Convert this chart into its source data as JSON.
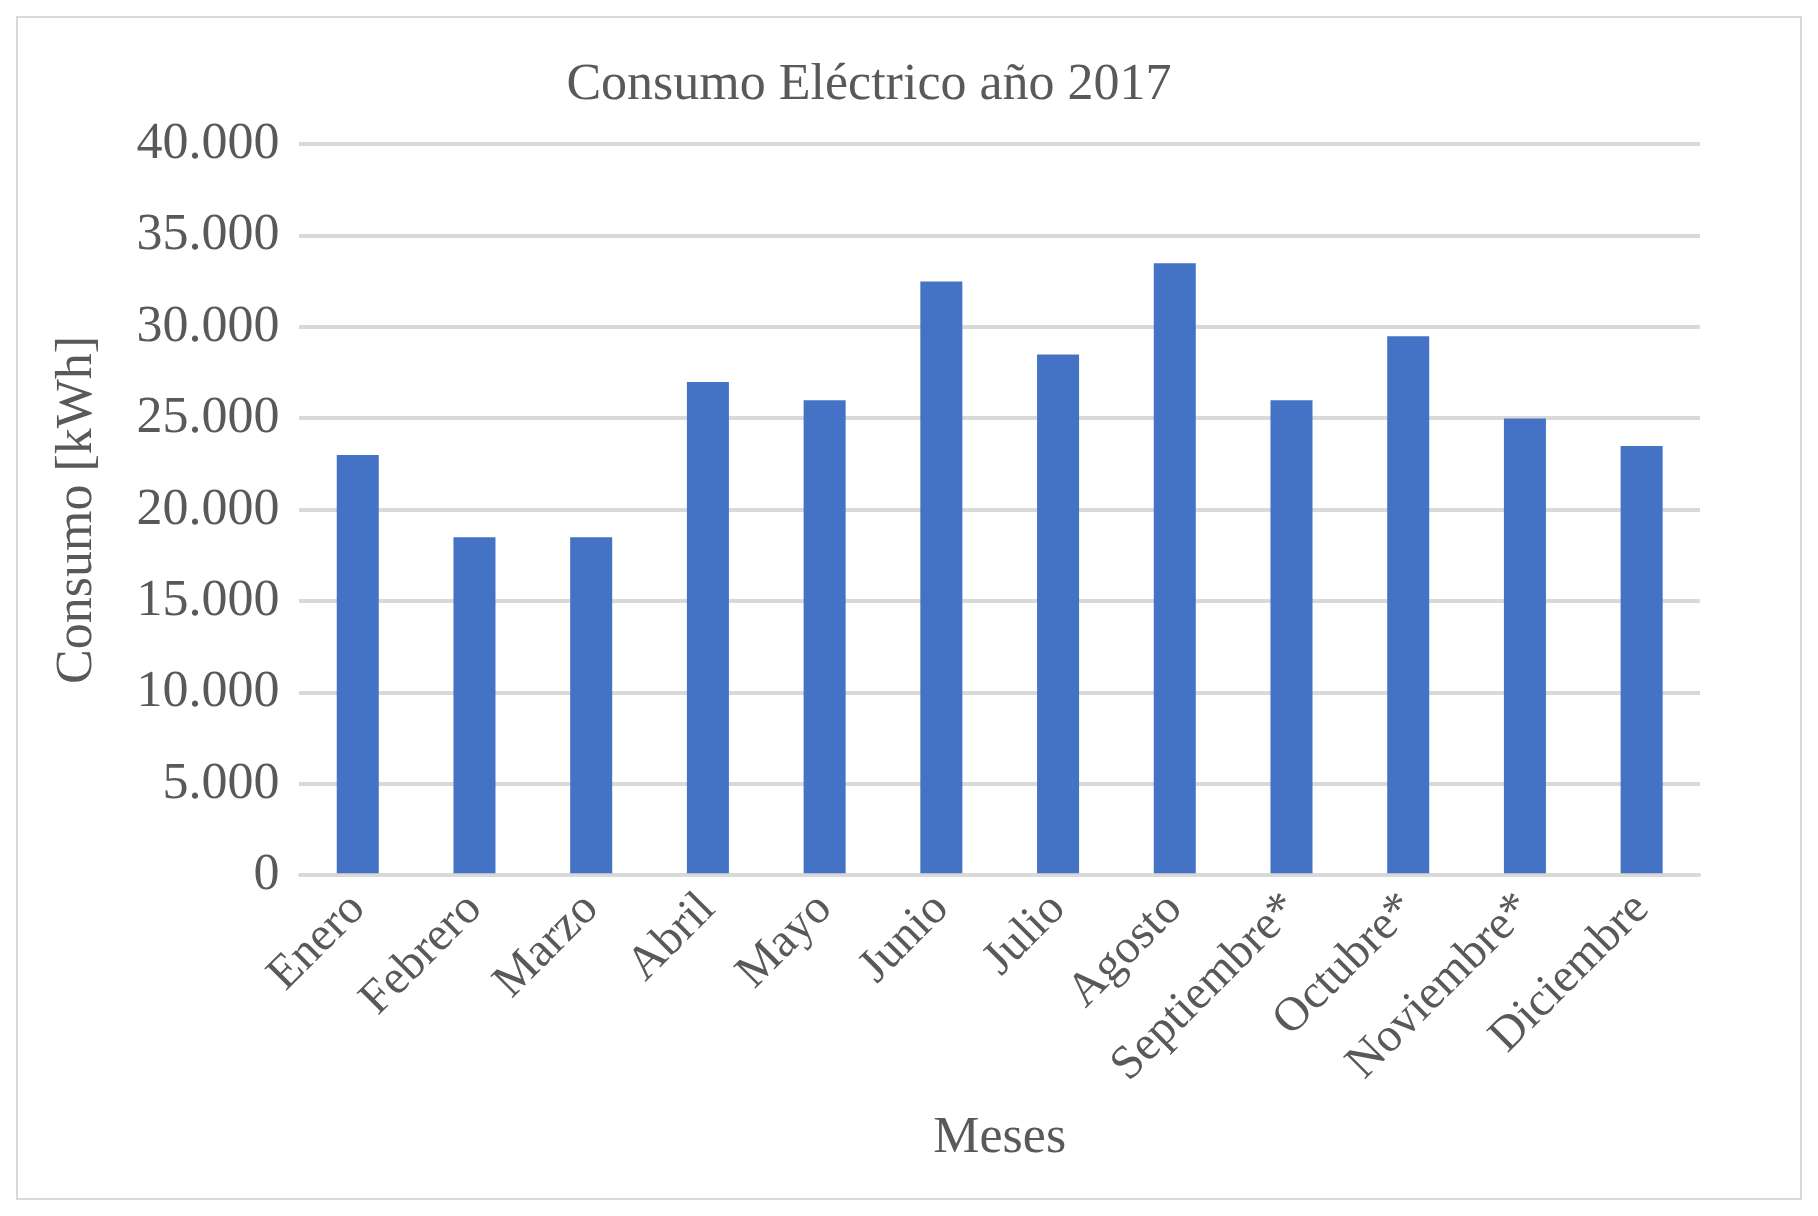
{
  "chart_data": {
    "type": "bar",
    "title": "Consumo Eléctrico año 2017",
    "xlabel": "Meses",
    "ylabel": "Consumo [kWh]",
    "categories": [
      "Enero",
      "Febrero",
      "Marzo",
      "Abril",
      "Mayo",
      "Junio",
      "Julio",
      "Agosto",
      "Septiembre*",
      "Octubre*",
      "Noviembre*",
      "Diciembre"
    ],
    "values": [
      23000,
      18500,
      18500,
      27000,
      26000,
      32500,
      28500,
      33500,
      26000,
      29500,
      25000,
      23500
    ],
    "color": "#4472c4",
    "ylim": [
      0,
      40000
    ],
    "yticks": [
      0,
      {
        "value": 5000,
        "label": "5.000"
      },
      {
        "value": 10000,
        "label": "10.000"
      },
      {
        "value": 15000,
        "label": "15.000"
      },
      {
        "value": 20000,
        "label": "20.000"
      },
      {
        "value": 25000,
        "label": "25.000"
      },
      {
        "value": 30000,
        "label": "30.000"
      },
      {
        "value": 35000,
        "label": "35.000"
      },
      {
        "value": 40000,
        "label": "40.000"
      }
    ],
    "grid": "y",
    "legend": false
  }
}
